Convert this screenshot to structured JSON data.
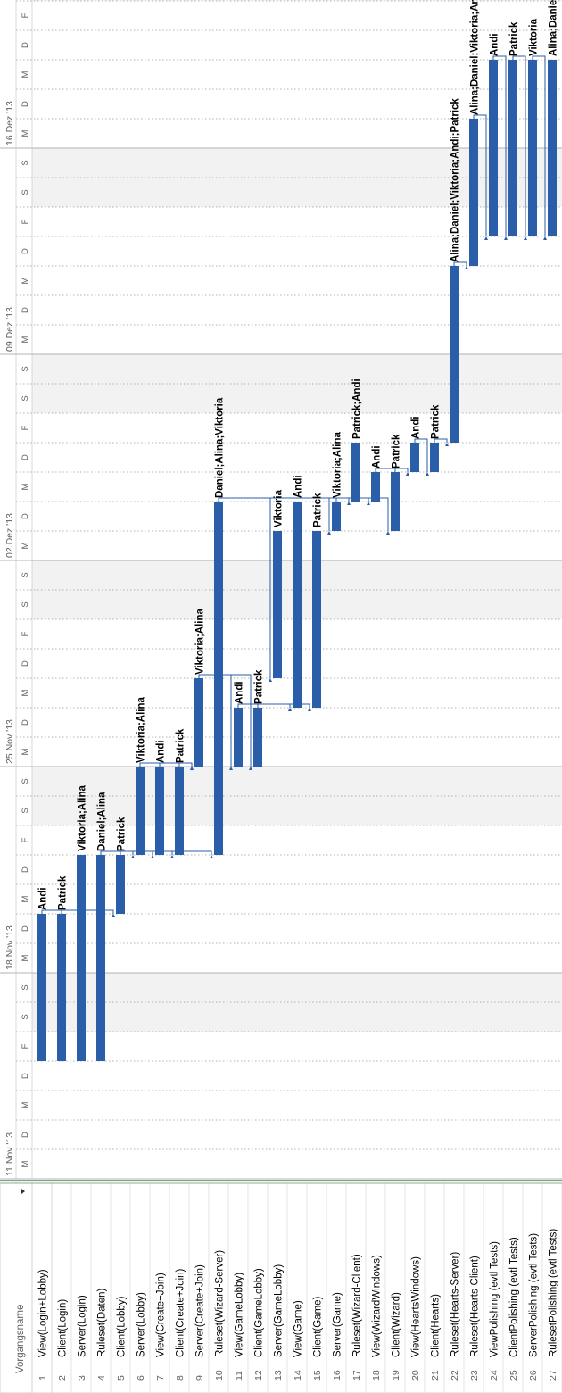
{
  "table": {
    "column_header": "Vorgangsname",
    "dropdown_icon": "chevron-down-icon",
    "rows": [
      {
        "id": "1",
        "name": "View(Login+Lobby)"
      },
      {
        "id": "2",
        "name": "Client(Login)"
      },
      {
        "id": "3",
        "name": "Server(Login)"
      },
      {
        "id": "4",
        "name": "Ruleset(Daten)"
      },
      {
        "id": "5",
        "name": "Client(Lobby)"
      },
      {
        "id": "6",
        "name": "Server(Lobby)"
      },
      {
        "id": "7",
        "name": "View(Create+Join)"
      },
      {
        "id": "8",
        "name": "Client(Create+Join)"
      },
      {
        "id": "9",
        "name": "Server(Create+Join)"
      },
      {
        "id": "10",
        "name": "Ruleset(Wizard-Server)"
      },
      {
        "id": "11",
        "name": "View(GameLobby)"
      },
      {
        "id": "12",
        "name": "Client(GameLobby)"
      },
      {
        "id": "13",
        "name": "Server(GameLobby)"
      },
      {
        "id": "14",
        "name": "View(Game)"
      },
      {
        "id": "15",
        "name": "Client(Game)"
      },
      {
        "id": "16",
        "name": "Server(Game)"
      },
      {
        "id": "17",
        "name": "Ruleset(Wizard-Client)"
      },
      {
        "id": "18",
        "name": "View(WizardWindows)"
      },
      {
        "id": "19",
        "name": "Client(Wizard)"
      },
      {
        "id": "20",
        "name": "View(HeartsWindows)"
      },
      {
        "id": "21",
        "name": "Client(Hearts)"
      },
      {
        "id": "22",
        "name": "Ruleset(Hearts-Server)"
      },
      {
        "id": "23",
        "name": "Ruleset(Hearts-Client)"
      },
      {
        "id": "24",
        "name": "ViewPolishing (evtl Tests)"
      },
      {
        "id": "25",
        "name": "ClientPolishing (evtl Tests)"
      },
      {
        "id": "26",
        "name": "ServerPolishing (evtl Tests)"
      },
      {
        "id": "27",
        "name": "RulesetPolishing (evtl Tests)"
      }
    ]
  },
  "timescale": {
    "week_labels": [
      "11 Nov '13",
      "18 Nov '13",
      "25 Nov '13",
      "02 Dez '13",
      "09 Dez '13",
      "16 Dez '13"
    ],
    "day_letters": [
      "M",
      "D",
      "M",
      "D",
      "F",
      "S",
      "S"
    ]
  },
  "colors": {
    "bar": "#2B5EA8",
    "weekend_shade": "#F2F2F2",
    "grid_dotted": "#9A9A9A",
    "today_line": "#5FA35F",
    "header_text": "#606060",
    "text": "#000000"
  },
  "chart_data": {
    "type": "gantt",
    "x_axis": "date",
    "start_day": "2013-11-11",
    "tasks": [
      {
        "id": 1,
        "start": "2013-11-15",
        "end": "2013-11-20",
        "resources": "Andi"
      },
      {
        "id": 2,
        "start": "2013-11-15",
        "end": "2013-11-20",
        "resources": "Patrick"
      },
      {
        "id": 3,
        "start": "2013-11-15",
        "end": "2013-11-22",
        "resources": "Viktoria;Alina"
      },
      {
        "id": 4,
        "start": "2013-11-15",
        "end": "2013-11-22",
        "resources": "Daniel;Alina"
      },
      {
        "id": 5,
        "start": "2013-11-20",
        "end": "2013-11-22",
        "resources": "Patrick"
      },
      {
        "id": 6,
        "start": "2013-11-22",
        "end": "2013-11-25",
        "resources": "Viktoria;Alina"
      },
      {
        "id": 7,
        "start": "2013-11-22",
        "end": "2013-11-25",
        "resources": "Andi"
      },
      {
        "id": 8,
        "start": "2013-11-22",
        "end": "2013-11-25",
        "resources": "Patrick"
      },
      {
        "id": 9,
        "start": "2013-11-25",
        "end": "2013-11-28",
        "resources": "Viktoria;Alina"
      },
      {
        "id": 10,
        "start": "2013-11-22",
        "end": "2013-12-04",
        "resources": "Daniel;Alina;Viktoria"
      },
      {
        "id": 11,
        "start": "2013-11-25",
        "end": "2013-11-27",
        "resources": "Andi"
      },
      {
        "id": 12,
        "start": "2013-11-25",
        "end": "2013-11-27",
        "resources": "Patrick"
      },
      {
        "id": 13,
        "start": "2013-11-28",
        "end": "2013-12-03",
        "resources": "Viktoria"
      },
      {
        "id": 14,
        "start": "2013-11-27",
        "end": "2013-12-04",
        "resources": "Andi"
      },
      {
        "id": 15,
        "start": "2013-11-27",
        "end": "2013-12-03",
        "resources": "Patrick"
      },
      {
        "id": 16,
        "start": "2013-12-03",
        "end": "2013-12-04",
        "resources": "Viktoria;Alina"
      },
      {
        "id": 17,
        "start": "2013-12-04",
        "end": "2013-12-06",
        "resources": "Patrick;Andi"
      },
      {
        "id": 18,
        "start": "2013-12-04",
        "end": "2013-12-05",
        "resources": "Andi"
      },
      {
        "id": 19,
        "start": "2013-12-03",
        "end": "2013-12-05",
        "resources": "Patrick"
      },
      {
        "id": 20,
        "start": "2013-12-05",
        "end": "2013-12-06",
        "resources": "Andi"
      },
      {
        "id": 21,
        "start": "2013-12-05",
        "end": "2013-12-06",
        "resources": "Patrick"
      },
      {
        "id": 22,
        "start": "2013-12-06",
        "end": "2013-12-12",
        "resources": "Alina;Daniel;Viktoria;Andi;Patrick"
      },
      {
        "id": 23,
        "start": "2013-12-12",
        "end": "2013-12-17",
        "resources": "Alina;Daniel;Viktoria;Andi;Patrick"
      },
      {
        "id": 24,
        "start": "2013-12-13",
        "end": "2013-12-19",
        "resources": "Andi"
      },
      {
        "id": 25,
        "start": "2013-12-13",
        "end": "2013-12-19",
        "resources": "Patrick"
      },
      {
        "id": 26,
        "start": "2013-12-13",
        "end": "2013-12-19",
        "resources": "Viktoria"
      },
      {
        "id": 27,
        "start": "2013-12-13",
        "end": "2013-12-19",
        "resources": "Alina;Daniel"
      }
    ],
    "links": [
      [
        1,
        5
      ],
      [
        2,
        5
      ],
      [
        5,
        6
      ],
      [
        5,
        7
      ],
      [
        5,
        8
      ],
      [
        6,
        9
      ],
      [
        7,
        9
      ],
      [
        8,
        9
      ],
      [
        4,
        10
      ],
      [
        9,
        11
      ],
      [
        9,
        12
      ],
      [
        11,
        14
      ],
      [
        12,
        14
      ],
      [
        12,
        15
      ],
      [
        10,
        13
      ],
      [
        10,
        16
      ],
      [
        10,
        17
      ],
      [
        10,
        18
      ],
      [
        16,
        19
      ],
      [
        18,
        20
      ],
      [
        19,
        20
      ],
      [
        20,
        21
      ],
      [
        21,
        22
      ],
      [
        22,
        23
      ],
      [
        23,
        24
      ],
      [
        24,
        25
      ],
      [
        25,
        26
      ],
      [
        26,
        27
      ]
    ]
  }
}
